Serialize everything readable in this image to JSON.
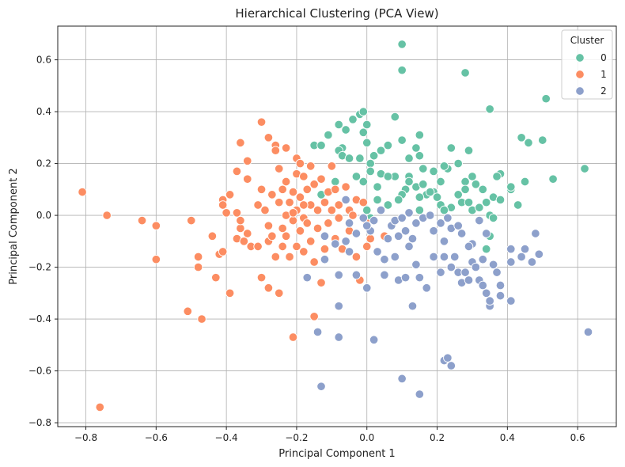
{
  "chart_data": {
    "type": "scatter",
    "title": "Hierarchical Clustering (PCA View)",
    "xlabel": "Principal Component 1",
    "ylabel": "Principal Component 2",
    "xlim": [
      -0.88,
      0.71
    ],
    "ylim": [
      -0.815,
      0.73
    ],
    "xticks": [
      -0.8,
      -0.6,
      -0.4,
      -0.2,
      0.0,
      0.2,
      0.4,
      0.6
    ],
    "xtick_labels": [
      "−0.8",
      "−0.6",
      "−0.4",
      "−0.2",
      "0.0",
      "0.2",
      "0.4",
      "0.6"
    ],
    "yticks": [
      -0.8,
      -0.6,
      -0.4,
      -0.2,
      0.0,
      0.2,
      0.4,
      0.6
    ],
    "ytick_labels": [
      "−0.8",
      "−0.6",
      "−0.4",
      "−0.2",
      "0.0",
      "0.2",
      "0.4",
      "0.6"
    ],
    "grid": true,
    "legend": {
      "title": "Cluster",
      "placement": "top-right"
    },
    "series": [
      {
        "name": "0",
        "color": "#66c2a5",
        "points": [
          [
            0.1,
            0.66
          ],
          [
            0.1,
            0.56
          ],
          [
            0.28,
            0.55
          ],
          [
            0.35,
            0.41
          ],
          [
            0.51,
            0.45
          ],
          [
            0.08,
            0.38
          ],
          [
            -0.04,
            0.37
          ],
          [
            -0.02,
            0.39
          ],
          [
            -0.01,
            0.4
          ],
          [
            -0.08,
            0.35
          ],
          [
            -0.06,
            0.33
          ],
          [
            0.0,
            0.35
          ],
          [
            -0.11,
            0.31
          ],
          [
            -0.01,
            0.32
          ],
          [
            0.15,
            0.31
          ],
          [
            0.44,
            0.3
          ],
          [
            0.46,
            0.28
          ],
          [
            0.5,
            0.29
          ],
          [
            0.06,
            0.27
          ],
          [
            -0.07,
            0.26
          ],
          [
            0.0,
            0.28
          ],
          [
            0.04,
            0.25
          ],
          [
            0.1,
            0.29
          ],
          [
            0.14,
            0.26
          ],
          [
            0.24,
            0.26
          ],
          [
            0.29,
            0.25
          ],
          [
            -0.15,
            0.27
          ],
          [
            -0.13,
            0.27
          ],
          [
            -0.08,
            0.25
          ],
          [
            -0.07,
            0.23
          ],
          [
            0.02,
            0.23
          ],
          [
            -0.02,
            0.22
          ],
          [
            -0.05,
            0.22
          ],
          [
            0.12,
            0.22
          ],
          [
            0.15,
            0.23
          ],
          [
            0.01,
            0.2
          ],
          [
            0.26,
            0.2
          ],
          [
            0.23,
            0.18
          ],
          [
            0.22,
            0.19
          ],
          [
            0.16,
            0.18
          ],
          [
            0.19,
            0.17
          ],
          [
            0.04,
            0.16
          ],
          [
            0.01,
            0.17
          ],
          [
            0.08,
            0.15
          ],
          [
            0.06,
            0.15
          ],
          [
            0.12,
            0.15
          ],
          [
            0.3,
            0.15
          ],
          [
            0.38,
            0.16
          ],
          [
            0.37,
            0.15
          ],
          [
            0.45,
            0.13
          ],
          [
            0.53,
            0.14
          ],
          [
            0.62,
            0.18
          ],
          [
            -0.09,
            0.13
          ],
          [
            -0.01,
            0.13
          ],
          [
            0.12,
            0.13
          ],
          [
            0.14,
            0.11
          ],
          [
            0.28,
            0.13
          ],
          [
            0.31,
            0.12
          ],
          [
            0.21,
            0.13
          ],
          [
            0.16,
            0.12
          ],
          [
            -0.13,
            0.08
          ],
          [
            -0.03,
            0.15
          ],
          [
            0.03,
            0.11
          ],
          [
            0.11,
            0.1
          ],
          [
            0.33,
            0.1
          ],
          [
            0.28,
            0.1
          ],
          [
            0.41,
            0.1
          ],
          [
            0.41,
            0.11
          ],
          [
            0.26,
            0.08
          ],
          [
            0.19,
            0.09
          ],
          [
            0.17,
            0.08
          ],
          [
            0.18,
            0.09
          ],
          [
            0.15,
            0.07
          ],
          [
            0.1,
            0.08
          ],
          [
            0.09,
            0.06
          ],
          [
            0.06,
            0.04
          ],
          [
            0.2,
            0.07
          ],
          [
            0.27,
            0.05
          ],
          [
            0.29,
            0.05
          ],
          [
            0.34,
            0.05
          ],
          [
            0.36,
            0.07
          ],
          [
            0.38,
            0.06
          ],
          [
            0.43,
            0.04
          ],
          [
            0.24,
            0.03
          ],
          [
            0.21,
            0.04
          ],
          [
            0.22,
            0.02
          ],
          [
            0.3,
            0.02
          ],
          [
            0.32,
            0.03
          ],
          [
            0.35,
            0.0
          ],
          [
            0.36,
            -0.01
          ],
          [
            0.01,
            -0.01
          ],
          [
            0.0,
            0.02
          ],
          [
            0.34,
            -0.13
          ],
          [
            0.35,
            -0.08
          ],
          [
            0.03,
            0.06
          ],
          [
            0.15,
            0.02
          ]
        ]
      },
      {
        "name": "1",
        "color": "#fc8d62",
        "points": [
          [
            -0.81,
            0.09
          ],
          [
            -0.74,
            0.0
          ],
          [
            -0.76,
            -0.74
          ],
          [
            -0.64,
            -0.02
          ],
          [
            -0.6,
            -0.04
          ],
          [
            -0.6,
            -0.17
          ],
          [
            -0.51,
            -0.37
          ],
          [
            -0.5,
            -0.02
          ],
          [
            -0.48,
            -0.16
          ],
          [
            -0.48,
            -0.2
          ],
          [
            -0.47,
            -0.4
          ],
          [
            -0.44,
            -0.08
          ],
          [
            -0.43,
            -0.24
          ],
          [
            -0.42,
            -0.15
          ],
          [
            -0.41,
            -0.14
          ],
          [
            -0.41,
            0.06
          ],
          [
            -0.41,
            0.04
          ],
          [
            -0.39,
            -0.3
          ],
          [
            -0.39,
            0.08
          ],
          [
            -0.4,
            0.01
          ],
          [
            -0.37,
            0.17
          ],
          [
            -0.37,
            0.01
          ],
          [
            -0.37,
            -0.09
          ],
          [
            -0.36,
            0.28
          ],
          [
            -0.36,
            -0.05
          ],
          [
            -0.36,
            -0.02
          ],
          [
            -0.34,
            0.21
          ],
          [
            -0.34,
            -0.07
          ],
          [
            -0.34,
            0.14
          ],
          [
            -0.33,
            -0.12
          ],
          [
            -0.31,
            -0.12
          ],
          [
            -0.31,
            0.04
          ],
          [
            -0.3,
            0.1
          ],
          [
            -0.3,
            0.36
          ],
          [
            -0.29,
            0.02
          ],
          [
            -0.28,
            0.3
          ],
          [
            -0.28,
            -0.04
          ],
          [
            -0.28,
            -0.1
          ],
          [
            -0.28,
            -0.28
          ],
          [
            -0.27,
            0.08
          ],
          [
            -0.27,
            -0.08
          ],
          [
            -0.26,
            0.27
          ],
          [
            -0.26,
            0.25
          ],
          [
            -0.26,
            -0.16
          ],
          [
            -0.25,
            0.18
          ],
          [
            -0.25,
            -0.3
          ],
          [
            -0.25,
            0.05
          ],
          [
            -0.24,
            0.1
          ],
          [
            -0.24,
            -0.12
          ],
          [
            -0.24,
            -0.05
          ],
          [
            -0.23,
            0.26
          ],
          [
            -0.23,
            0.13
          ],
          [
            -0.23,
            0.0
          ],
          [
            -0.23,
            -0.08
          ],
          [
            -0.22,
            0.05
          ],
          [
            -0.22,
            -0.16
          ],
          [
            -0.21,
            0.09
          ],
          [
            -0.21,
            -0.02
          ],
          [
            -0.21,
            -0.47
          ],
          [
            -0.2,
            0.22
          ],
          [
            -0.2,
            0.16
          ],
          [
            -0.2,
            0.02
          ],
          [
            -0.2,
            -0.12
          ],
          [
            -0.19,
            0.2
          ],
          [
            -0.19,
            0.07
          ],
          [
            -0.19,
            -0.06
          ],
          [
            -0.18,
            0.15
          ],
          [
            -0.18,
            -0.01
          ],
          [
            -0.18,
            -0.14
          ],
          [
            -0.17,
            0.1
          ],
          [
            -0.17,
            -0.03
          ],
          [
            -0.16,
            0.19
          ],
          [
            -0.16,
            0.04
          ],
          [
            -0.16,
            -0.1
          ],
          [
            -0.15,
            -0.39
          ],
          [
            -0.15,
            0.12
          ],
          [
            -0.14,
            -0.05
          ],
          [
            -0.14,
            0.02
          ],
          [
            -0.13,
            -0.26
          ],
          [
            -0.13,
            0.14
          ],
          [
            -0.12,
            0.05
          ],
          [
            -0.12,
            -0.13
          ],
          [
            -0.11,
            0.09
          ],
          [
            -0.11,
            -0.03
          ],
          [
            -0.1,
            0.19
          ],
          [
            -0.1,
            0.02
          ],
          [
            -0.09,
            -0.09
          ],
          [
            -0.09,
            0.1
          ],
          [
            -0.08,
            0.04
          ],
          [
            -0.08,
            -0.01
          ],
          [
            -0.07,
            -0.13
          ],
          [
            -0.06,
            0.11
          ],
          [
            -0.05,
            0.02
          ],
          [
            -0.05,
            -0.06
          ],
          [
            -0.04,
            0.0
          ],
          [
            -0.03,
            0.06
          ],
          [
            -0.03,
            -0.16
          ],
          [
            -0.02,
            -0.25
          ],
          [
            -0.01,
            0.05
          ],
          [
            0.0,
            -0.03
          ],
          [
            0.0,
            -0.12
          ],
          [
            0.01,
            -0.09
          ],
          [
            -0.3,
            -0.24
          ],
          [
            -0.35,
            -0.1
          ],
          [
            -0.21,
            0.01
          ],
          [
            -0.18,
            0.04
          ],
          [
            0.05,
            -0.08
          ],
          [
            -0.15,
            -0.18
          ]
        ]
      },
      {
        "name": "2",
        "color": "#8da0cb",
        "points": [
          [
            -0.14,
            -0.45
          ],
          [
            -0.13,
            -0.66
          ],
          [
            -0.08,
            -0.35
          ],
          [
            -0.08,
            -0.47
          ],
          [
            0.02,
            -0.48
          ],
          [
            0.1,
            -0.63
          ],
          [
            0.15,
            -0.69
          ],
          [
            0.22,
            -0.56
          ],
          [
            0.23,
            -0.55
          ],
          [
            0.24,
            -0.58
          ],
          [
            0.63,
            -0.45
          ],
          [
            -0.17,
            -0.24
          ],
          [
            -0.12,
            -0.17
          ],
          [
            -0.08,
            -0.23
          ],
          [
            -0.06,
            -0.1
          ],
          [
            -0.03,
            -0.23
          ],
          [
            0.0,
            -0.28
          ],
          [
            0.05,
            -0.17
          ],
          [
            0.05,
            -0.23
          ],
          [
            0.08,
            -0.16
          ],
          [
            0.09,
            -0.25
          ],
          [
            0.11,
            -0.24
          ],
          [
            0.13,
            -0.35
          ],
          [
            0.14,
            -0.19
          ],
          [
            0.15,
            -0.24
          ],
          [
            0.17,
            -0.28
          ],
          [
            0.19,
            -0.16
          ],
          [
            0.21,
            -0.22
          ],
          [
            0.22,
            -0.16
          ],
          [
            0.24,
            -0.2
          ],
          [
            0.25,
            -0.16
          ],
          [
            0.26,
            -0.22
          ],
          [
            0.27,
            -0.26
          ],
          [
            0.28,
            -0.22
          ],
          [
            0.29,
            -0.25
          ],
          [
            0.3,
            -0.18
          ],
          [
            0.3,
            -0.11
          ],
          [
            0.31,
            -0.2
          ],
          [
            0.32,
            -0.25
          ],
          [
            0.33,
            -0.17
          ],
          [
            0.33,
            -0.27
          ],
          [
            0.34,
            -0.3
          ],
          [
            0.35,
            -0.35
          ],
          [
            0.35,
            -0.33
          ],
          [
            0.36,
            -0.19
          ],
          [
            0.37,
            -0.22
          ],
          [
            0.38,
            -0.31
          ],
          [
            0.38,
            -0.27
          ],
          [
            0.41,
            -0.33
          ],
          [
            0.41,
            -0.13
          ],
          [
            0.41,
            -0.18
          ],
          [
            0.44,
            -0.16
          ],
          [
            0.45,
            -0.13
          ],
          [
            0.47,
            -0.18
          ],
          [
            0.48,
            -0.07
          ],
          [
            0.49,
            -0.15
          ],
          [
            -0.12,
            -0.08
          ],
          [
            -0.09,
            -0.11
          ],
          [
            -0.05,
            -0.03
          ],
          [
            -0.03,
            -0.07
          ],
          [
            -0.01,
            -0.01
          ],
          [
            0.01,
            -0.06
          ],
          [
            0.02,
            -0.02
          ],
          [
            0.04,
            0.02
          ],
          [
            0.06,
            -0.09
          ],
          [
            0.07,
            -0.04
          ],
          [
            0.08,
            -0.02
          ],
          [
            0.09,
            -0.08
          ],
          [
            0.1,
            -0.01
          ],
          [
            0.11,
            -0.06
          ],
          [
            0.12,
            0.01
          ],
          [
            0.13,
            -0.09
          ],
          [
            0.14,
            -0.03
          ],
          [
            0.16,
            -0.01
          ],
          [
            0.18,
            0.0
          ],
          [
            0.19,
            -0.06
          ],
          [
            0.21,
            -0.03
          ],
          [
            0.22,
            -0.1
          ],
          [
            0.23,
            -0.01
          ],
          [
            0.24,
            -0.05
          ],
          [
            0.26,
            -0.04
          ],
          [
            0.27,
            -0.07
          ],
          [
            0.29,
            -0.12
          ],
          [
            0.32,
            -0.02
          ],
          [
            0.34,
            -0.07
          ],
          [
            -0.06,
            0.06
          ],
          [
            -0.05,
            -0.14
          ],
          [
            0.0,
            -0.04
          ],
          [
            0.03,
            -0.14
          ],
          [
            0.12,
            -0.12
          ]
        ]
      }
    ]
  }
}
